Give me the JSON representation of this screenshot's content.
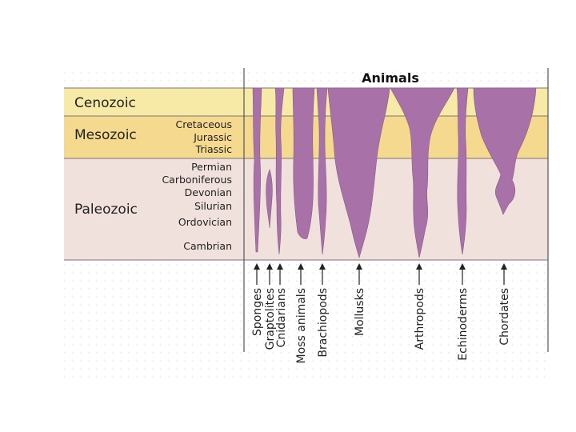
{
  "title": "Animals",
  "eras": [
    {
      "id": "cenozoic",
      "label": "Cenozoic",
      "color": "#f6eaa6"
    },
    {
      "id": "mesozoic",
      "label": "Mesozoic",
      "color": "#f4d98f"
    },
    {
      "id": "paleozoic",
      "label": "Paleozoic",
      "color": "#f1e1dc"
    }
  ],
  "periods": [
    {
      "era": "mesozoic",
      "label": "Cretaceous"
    },
    {
      "era": "mesozoic",
      "label": "Jurassic"
    },
    {
      "era": "mesozoic",
      "label": "Triassic"
    },
    {
      "era": "paleozoic",
      "label": "Permian"
    },
    {
      "era": "paleozoic",
      "label": "Carboniferous"
    },
    {
      "era": "paleozoic",
      "label": "Devonian"
    },
    {
      "era": "paleozoic",
      "label": "Silurian"
    },
    {
      "era": "paleozoic",
      "label": "Ordovician"
    },
    {
      "era": "paleozoic",
      "label": "Cambrian"
    }
  ],
  "groups": [
    {
      "id": "sponges",
      "label": "Sponges"
    },
    {
      "id": "graptolites",
      "label": "Graptolites"
    },
    {
      "id": "cnidarians",
      "label": "Cnidarians"
    },
    {
      "id": "moss-animals",
      "label": "Moss animals"
    },
    {
      "id": "brachiopods",
      "label": "Brachiopods"
    },
    {
      "id": "mollusks",
      "label": "Mollusks"
    },
    {
      "id": "arthropods",
      "label": "Arthropods"
    },
    {
      "id": "echinoderms",
      "label": "Echinoderms"
    },
    {
      "id": "chordates",
      "label": "Chordates"
    }
  ],
  "colors": {
    "spindle": "#a872a8",
    "grid_dot": "#c8c8c8",
    "divider": "#555555"
  }
}
